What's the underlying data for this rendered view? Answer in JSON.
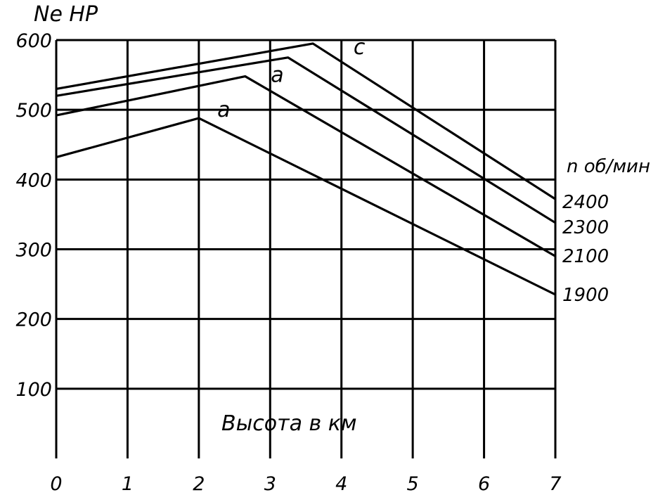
{
  "chart_data": {
    "type": "line",
    "ylabel": "Ne HP",
    "xlabel": "Высота в км",
    "legend_title": "n об/мин",
    "xlim": [
      0,
      7
    ],
    "ylim": [
      0,
      600
    ],
    "xticks": [
      "0",
      "1",
      "2",
      "3",
      "4",
      "5",
      "6",
      "7"
    ],
    "yticks": [
      "100",
      "200",
      "300",
      "400",
      "500",
      "600"
    ],
    "grid": true,
    "series": [
      {
        "name": "2400",
        "x": [
          0,
          3.6,
          7
        ],
        "y": [
          530,
          595,
          372
        ]
      },
      {
        "name": "2300",
        "x": [
          0,
          3.25,
          7
        ],
        "y": [
          520,
          575,
          338
        ]
      },
      {
        "name": "2100",
        "x": [
          0,
          2.65,
          7
        ],
        "y": [
          492,
          548,
          290
        ]
      },
      {
        "name": "1900",
        "x": [
          0,
          2.0,
          7
        ],
        "y": [
          432,
          488,
          235
        ]
      }
    ],
    "annotations": [
      {
        "text": "a",
        "x": 2.35,
        "y": 490
      },
      {
        "text": "a",
        "x": 3.1,
        "y": 540
      },
      {
        "text": "c",
        "x": 4.25,
        "y": 580
      }
    ]
  }
}
